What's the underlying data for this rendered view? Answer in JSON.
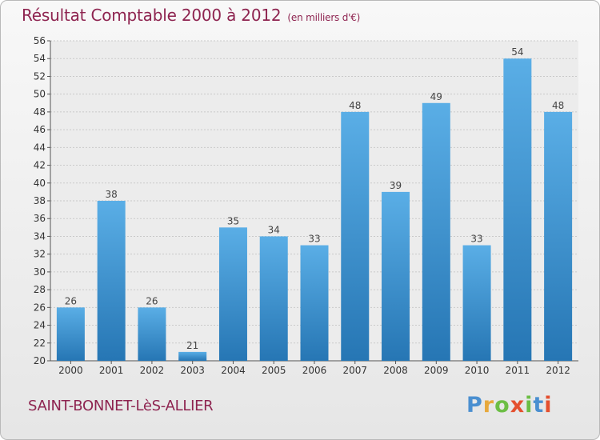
{
  "header": {
    "title": "Résultat Comptable 2000 à 2012",
    "subtitle": "(en milliers d'€)"
  },
  "footer": {
    "place": "SAINT-BONNET-LèS-ALLIER",
    "logo": [
      "P",
      "r",
      "o",
      "x",
      "i",
      "t",
      "i"
    ]
  },
  "colors": {
    "bar_light": "#5aaee6",
    "bar_dark": "#2676b4",
    "logo": [
      "#4a8fd0",
      "#e7a93d",
      "#6cbe45",
      "#e44f2e",
      "#6cbe45",
      "#4a8fd0",
      "#e44f2e"
    ]
  },
  "chart_data": {
    "type": "bar",
    "title": "Résultat Comptable 2000 à 2012",
    "ylabel": "en milliers d'€",
    "categories": [
      "2000",
      "2001",
      "2002",
      "2003",
      "2004",
      "2005",
      "2006",
      "2007",
      "2008",
      "2009",
      "2010",
      "2011",
      "2012"
    ],
    "values": [
      26,
      38,
      26,
      21,
      35,
      34,
      33,
      48,
      39,
      49,
      33,
      54,
      48
    ],
    "ylim": [
      20,
      56
    ],
    "yticks": [
      20,
      22,
      24,
      26,
      28,
      30,
      32,
      34,
      36,
      38,
      40,
      42,
      44,
      46,
      48,
      50,
      52,
      54,
      56
    ],
    "grid": true
  }
}
